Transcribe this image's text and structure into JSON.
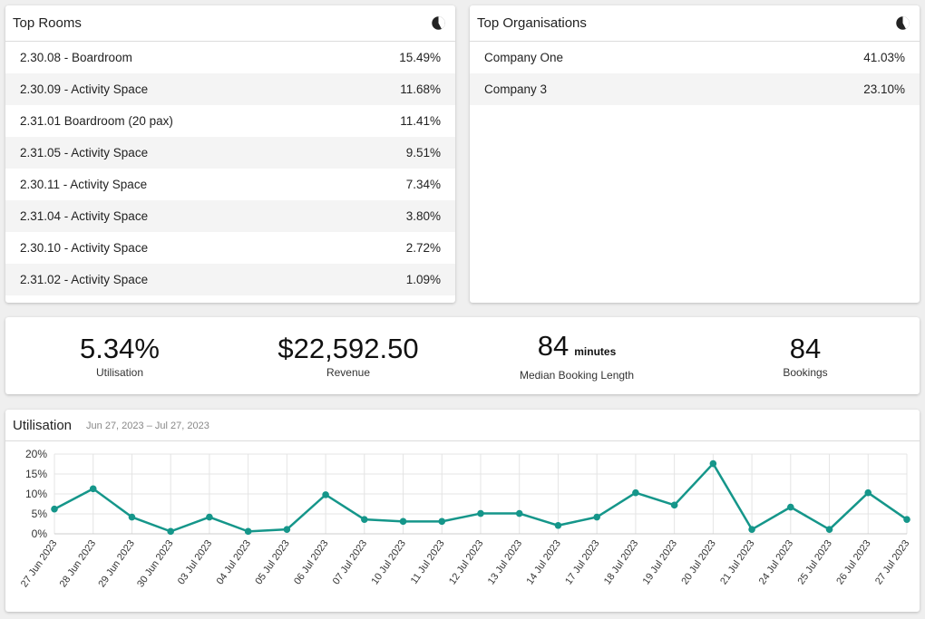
{
  "top_rooms": {
    "title": "Top Rooms",
    "icon": "pie-chart-icon",
    "rows": [
      {
        "name": "2.30.08 - Boardroom",
        "value": "15.49%"
      },
      {
        "name": "2.30.09 - Activity Space",
        "value": "11.68%"
      },
      {
        "name": "2.31.01 Boardroom (20 pax)",
        "value": "11.41%"
      },
      {
        "name": "2.31.05 - Activity Space",
        "value": "9.51%"
      },
      {
        "name": "2.30.11 - Activity Space",
        "value": "7.34%"
      },
      {
        "name": "2.31.04 - Activity Space",
        "value": "3.80%"
      },
      {
        "name": "2.30.10 - Activity Space",
        "value": "2.72%"
      },
      {
        "name": "2.31.02 - Activity Space",
        "value": "1.09%"
      }
    ]
  },
  "top_organisations": {
    "title": "Top Organisations",
    "icon": "pie-chart-icon",
    "rows": [
      {
        "name": "Company One",
        "value": "41.03%"
      },
      {
        "name": "Company 3",
        "value": "23.10%"
      }
    ]
  },
  "kpis": {
    "utilisation": {
      "value": "5.34%",
      "label": "Utilisation"
    },
    "revenue": {
      "value": "$22,592.50",
      "label": "Revenue"
    },
    "median": {
      "value": "84",
      "unit": "minutes",
      "label": "Median Booking Length"
    },
    "bookings": {
      "value": "84",
      "label": "Bookings"
    }
  },
  "utilisation_chart": {
    "title": "Utilisation",
    "date_range": "Jun 27, 2023 – Jul 27, 2023"
  },
  "colors": {
    "line": "#15968a",
    "grid": "#e4e4e4",
    "page": "#efefef"
  },
  "chart_data": {
    "type": "line",
    "title": "Utilisation",
    "x": [
      "27 Jun 2023",
      "28 Jun 2023",
      "29 Jun 2023",
      "30 Jun 2023",
      "03 Jul 2023",
      "04 Jul 2023",
      "05 Jul 2023",
      "06 Jul 2023",
      "07 Jul 2023",
      "10 Jul 2023",
      "11 Jul 2023",
      "12 Jul 2023",
      "13 Jul 2023",
      "14 Jul 2023",
      "17 Jul 2023",
      "18 Jul 2023",
      "19 Jul 2023",
      "20 Jul 2023",
      "21 Jul 2023",
      "24 Jul 2023",
      "25 Jul 2023",
      "26 Jul 2023",
      "27 Jul 2023"
    ],
    "series": [
      {
        "values": [
          6.2,
          11.3,
          4.2,
          0.6,
          4.2,
          0.6,
          1.1,
          9.8,
          3.6,
          3.1,
          3.1,
          5.1,
          5.1,
          2.1,
          4.2,
          10.3,
          7.2,
          17.6,
          1.1,
          6.7,
          1.1,
          10.3,
          3.6
        ]
      }
    ],
    "y_ticks": [
      "0%",
      "5%",
      "10%",
      "15%",
      "20%"
    ],
    "ylim": [
      0,
      20
    ],
    "grid": true
  }
}
